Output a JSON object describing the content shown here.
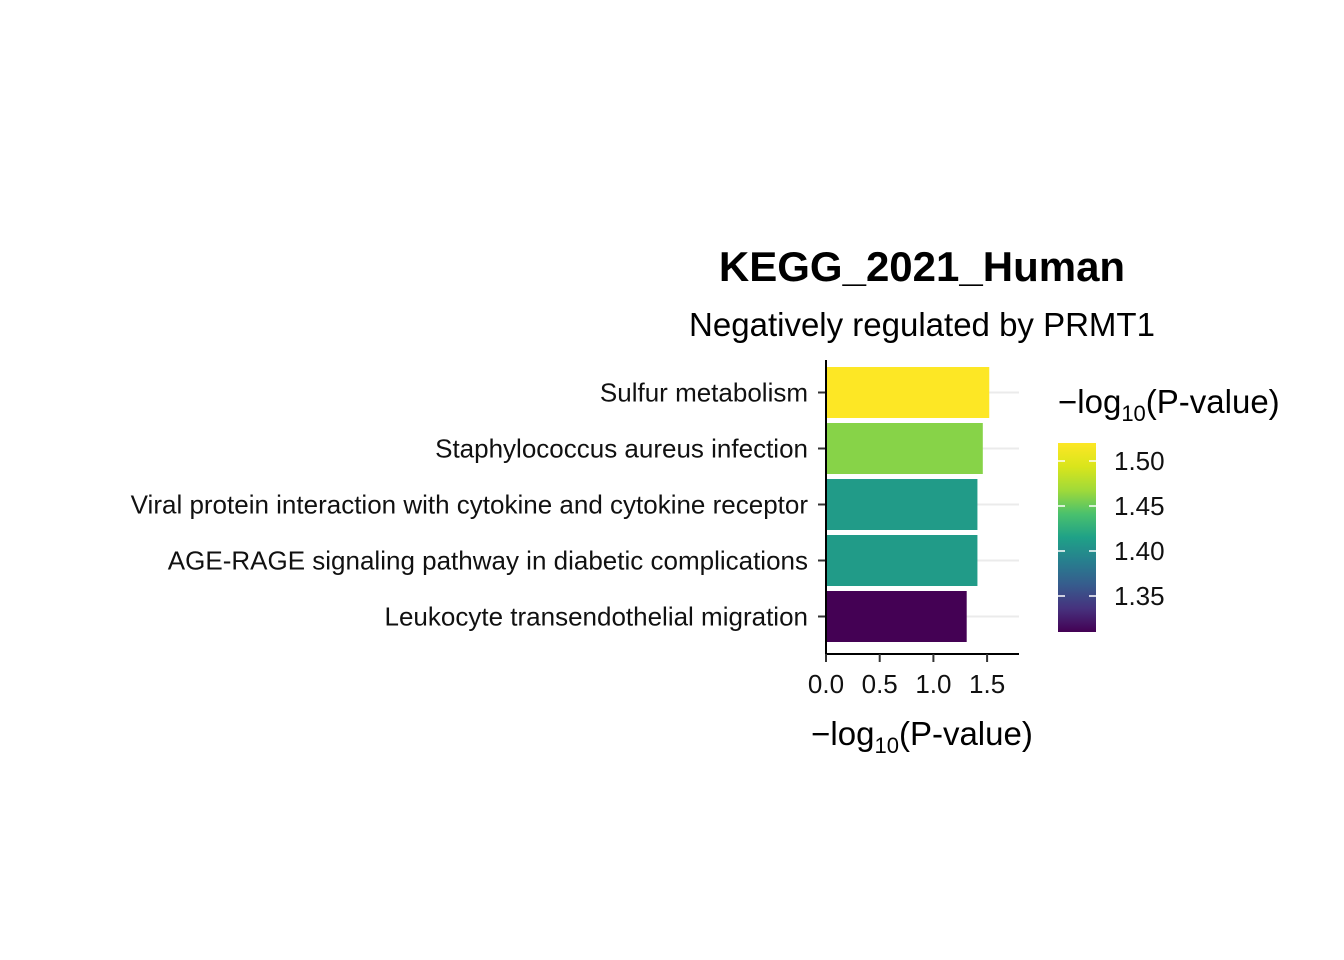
{
  "chart_data": {
    "type": "bar",
    "orientation": "horizontal",
    "title": "KEGG_2021_Human",
    "subtitle": "Negatively regulated by PRMT1",
    "categories": [
      "Sulfur metabolism",
      "Staphylococcus aureus infection",
      "Viral protein interaction with cytokine and cytokine receptor",
      "AGE-RAGE signaling pathway in diabetic complications",
      "Leukocyte transendothelial migration"
    ],
    "values": [
      1.52,
      1.46,
      1.41,
      1.41,
      1.31
    ],
    "xlim": [
      0,
      1.8
    ],
    "x_ticks": [
      "0.0",
      "0.5",
      "1.0",
      "1.5"
    ],
    "xlabel": {
      "prefix": "−log",
      "sub": "10",
      "suffix": "(P-value)"
    },
    "ylabel": "",
    "grid": "horizontal major lines",
    "legend": {
      "placement": "right",
      "type": "colorbar",
      "title": {
        "prefix": "−log",
        "sub": "10",
        "suffix": "(P-value)"
      },
      "range": [
        1.31,
        1.52
      ],
      "ticks": [
        "1.50",
        "1.45",
        "1.40",
        "1.35"
      ],
      "colormap": "viridis"
    }
  }
}
